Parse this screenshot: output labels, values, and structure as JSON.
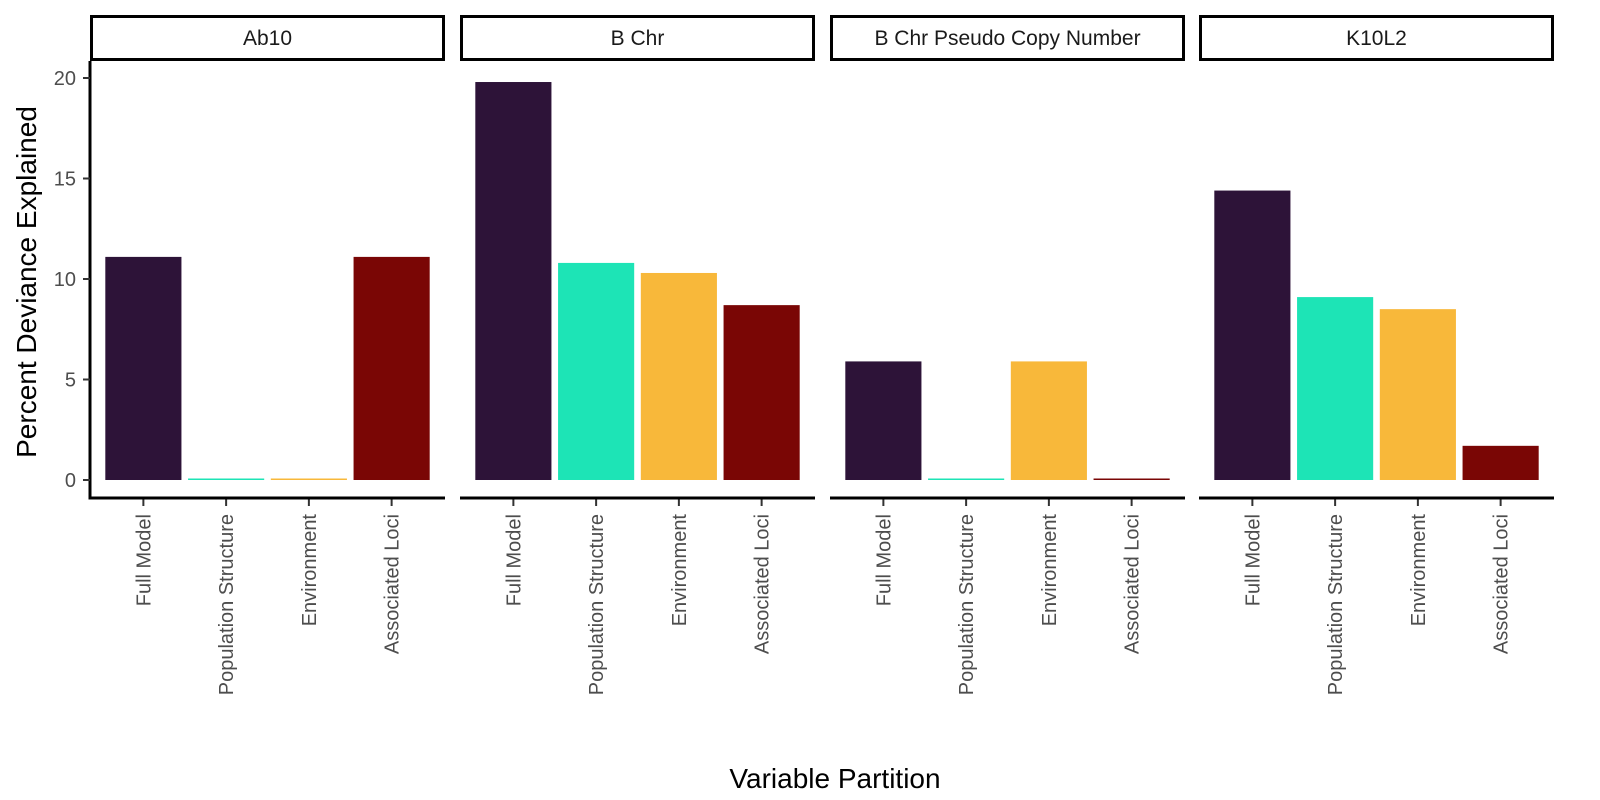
{
  "chart_data": {
    "type": "bar",
    "xlabel": "Variable Partition",
    "ylabel": "Percent Deviance Explained",
    "ylim": [
      0,
      20.6
    ],
    "yticks": [
      0,
      5,
      10,
      15,
      20
    ],
    "grid": false,
    "legend": "none",
    "categories": [
      "Full Model",
      "Population Structure",
      "Environment",
      "Associated Loci"
    ],
    "category_colors": [
      "#2d1338",
      "#1de4b6",
      "#f8b83a",
      "#7a0605"
    ],
    "panels": [
      {
        "name": "Ab10",
        "values": [
          11.1,
          0.05,
          0.05,
          11.1
        ]
      },
      {
        "name": "B Chr",
        "values": [
          19.8,
          10.8,
          10.3,
          8.7
        ]
      },
      {
        "name": "B Chr Pseudo Copy Number",
        "values": [
          5.9,
          0.05,
          5.9,
          0.05
        ]
      },
      {
        "name": "K10L2",
        "values": [
          14.4,
          9.1,
          8.5,
          1.7
        ]
      }
    ]
  }
}
